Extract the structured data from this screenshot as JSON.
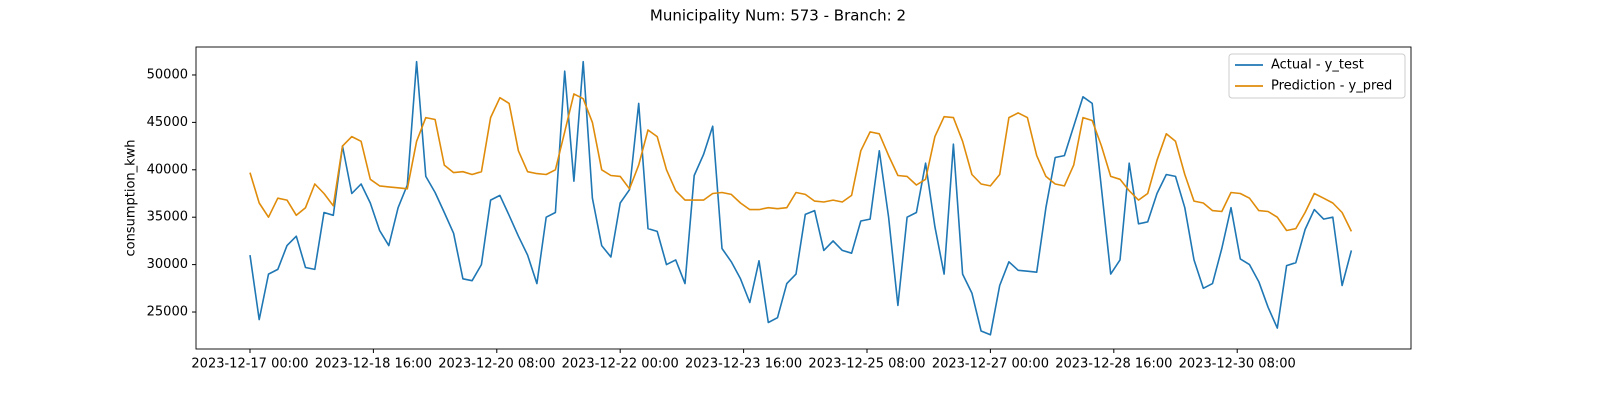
{
  "chart_data": {
    "type": "line",
    "title": "Municipality Num: 573 - Branch: 2",
    "y_label": "consumption_kwh",
    "x": [
      "2023-12-17 00:00",
      "2023-12-17 03:00",
      "2023-12-17 06:00",
      "2023-12-17 09:00",
      "2023-12-17 12:00",
      "2023-12-17 15:00",
      "2023-12-17 18:00",
      "2023-12-17 21:00",
      "2023-12-18 00:00",
      "2023-12-18 03:00",
      "2023-12-18 06:00",
      "2023-12-18 09:00",
      "2023-12-18 12:00",
      "2023-12-18 15:00",
      "2023-12-18 18:00",
      "2023-12-18 21:00",
      "2023-12-19 00:00",
      "2023-12-19 03:00",
      "2023-12-19 06:00",
      "2023-12-19 09:00",
      "2023-12-19 12:00",
      "2023-12-19 15:00",
      "2023-12-19 18:00",
      "2023-12-19 21:00",
      "2023-12-20 00:00",
      "2023-12-20 03:00",
      "2023-12-20 06:00",
      "2023-12-20 09:00",
      "2023-12-20 12:00",
      "2023-12-20 15:00",
      "2023-12-20 18:00",
      "2023-12-20 21:00",
      "2023-12-21 00:00",
      "2023-12-21 03:00",
      "2023-12-21 06:00",
      "2023-12-21 09:00",
      "2023-12-21 12:00",
      "2023-12-21 15:00",
      "2023-12-21 18:00",
      "2023-12-21 21:00",
      "2023-12-22 00:00",
      "2023-12-22 03:00",
      "2023-12-22 06:00",
      "2023-12-22 09:00",
      "2023-12-22 12:00",
      "2023-12-22 15:00",
      "2023-12-22 18:00",
      "2023-12-22 21:00",
      "2023-12-23 00:00",
      "2023-12-23 03:00",
      "2023-12-23 06:00",
      "2023-12-23 09:00",
      "2023-12-23 12:00",
      "2023-12-23 15:00",
      "2023-12-23 18:00",
      "2023-12-23 21:00",
      "2023-12-24 00:00",
      "2023-12-24 03:00",
      "2023-12-24 06:00",
      "2023-12-24 09:00",
      "2023-12-24 12:00",
      "2023-12-24 15:00",
      "2023-12-24 18:00",
      "2023-12-24 21:00",
      "2023-12-25 00:00",
      "2023-12-25 03:00",
      "2023-12-25 06:00",
      "2023-12-25 09:00",
      "2023-12-25 12:00",
      "2023-12-25 15:00",
      "2023-12-25 18:00",
      "2023-12-25 21:00",
      "2023-12-26 00:00",
      "2023-12-26 03:00",
      "2023-12-26 06:00",
      "2023-12-26 09:00",
      "2023-12-26 12:00",
      "2023-12-26 15:00",
      "2023-12-26 18:00",
      "2023-12-26 21:00",
      "2023-12-27 00:00",
      "2023-12-27 03:00",
      "2023-12-27 06:00",
      "2023-12-27 09:00",
      "2023-12-27 12:00",
      "2023-12-27 15:00",
      "2023-12-27 18:00",
      "2023-12-27 21:00",
      "2023-12-28 00:00",
      "2023-12-28 03:00",
      "2023-12-28 06:00",
      "2023-12-28 09:00",
      "2023-12-28 12:00",
      "2023-12-28 15:00",
      "2023-12-28 18:00",
      "2023-12-28 21:00",
      "2023-12-29 00:00",
      "2023-12-29 03:00",
      "2023-12-29 06:00",
      "2023-12-29 09:00",
      "2023-12-29 12:00",
      "2023-12-29 15:00",
      "2023-12-29 18:00",
      "2023-12-29 21:00",
      "2023-12-30 00:00",
      "2023-12-30 03:00",
      "2023-12-30 06:00",
      "2023-12-30 09:00",
      "2023-12-30 12:00",
      "2023-12-30 15:00",
      "2023-12-30 18:00",
      "2023-12-30 21:00",
      "2023-12-31 00:00",
      "2023-12-31 03:00",
      "2023-12-31 06:00",
      "2023-12-31 09:00",
      "2023-12-31 12:00",
      "2023-12-31 15:00",
      "2023-12-31 18:00",
      "2023-12-31 21:00"
    ],
    "series": [
      {
        "name": "Actual - y_test",
        "color": "#1f77b4",
        "values": [
          31000,
          24200,
          29000,
          29500,
          32000,
          33000,
          29700,
          29500,
          35500,
          35200,
          42500,
          37500,
          38500,
          36500,
          33600,
          32000,
          36000,
          38400,
          51400,
          39300,
          37600,
          35500,
          33300,
          28500,
          28300,
          30000,
          36800,
          37300,
          35200,
          33000,
          31000,
          28000,
          35000,
          35500,
          50400,
          38800,
          51400,
          37000,
          32000,
          30800,
          36500,
          37900,
          47000,
          33800,
          33500,
          30000,
          30500,
          28000,
          39400,
          41600,
          44600,
          31700,
          30300,
          28500,
          26000,
          30400,
          23900,
          24400,
          28000,
          29000,
          35300,
          35700,
          31500,
          32500,
          31500,
          31200,
          34600,
          34800,
          42000,
          35000,
          25700,
          35000,
          35500,
          40700,
          34000,
          29000,
          42700,
          29000,
          27000,
          23000,
          22600,
          27800,
          30300,
          29400,
          29300,
          29200,
          36000,
          41300,
          41500,
          44600,
          47700,
          47000,
          38000,
          29000,
          30500,
          40700,
          34300,
          34500,
          37500,
          39500,
          39300,
          36000,
          30500,
          27500,
          28000,
          31700,
          36000,
          30600,
          30000,
          28200,
          25500,
          23300,
          29900,
          30200,
          33700,
          35800,
          34800,
          35000,
          27800,
          31500
        ]
      },
      {
        "name": "Prediction - y_pred",
        "color": "#e08c0b",
        "values": [
          39700,
          36500,
          35000,
          37000,
          36800,
          35200,
          36000,
          38500,
          37500,
          36200,
          42500,
          43500,
          43000,
          39000,
          38300,
          38200,
          38100,
          38000,
          43000,
          45500,
          45300,
          40500,
          39700,
          39800,
          39500,
          39800,
          45500,
          47600,
          47000,
          42000,
          39800,
          39600,
          39500,
          40000,
          44000,
          48000,
          47500,
          45000,
          40000,
          39400,
          39300,
          38000,
          40500,
          44200,
          43500,
          40000,
          37800,
          36800,
          36800,
          36800,
          37500,
          37600,
          37400,
          36500,
          35800,
          35800,
          36000,
          35900,
          36000,
          37600,
          37400,
          36700,
          36600,
          36800,
          36600,
          37300,
          42000,
          44000,
          43800,
          41500,
          39400,
          39300,
          38400,
          39000,
          43500,
          45600,
          45500,
          43000,
          39500,
          38500,
          38300,
          39500,
          45500,
          46000,
          45500,
          41500,
          39300,
          38500,
          38300,
          40500,
          45500,
          45200,
          42500,
          39300,
          39000,
          37800,
          36800,
          37500,
          41000,
          43800,
          43000,
          39500,
          36700,
          36500,
          35700,
          35600,
          37600,
          37500,
          37000,
          35700,
          35600,
          35000,
          33600,
          33800,
          35500,
          37500,
          37000,
          36500,
          35500,
          33500
        ]
      }
    ],
    "xlim": [
      "2023-12-16 06:30",
      "2024-01-01 16:20"
    ],
    "xticks": [
      "2023-12-17 00:00",
      "2023-12-18 16:00",
      "2023-12-20 08:00",
      "2023-12-22 00:00",
      "2023-12-23 16:00",
      "2023-12-25 08:00",
      "2023-12-27 00:00",
      "2023-12-28 16:00",
      "2023-12-30 08:00"
    ],
    "ylim": [
      21100,
      52950
    ],
    "yticks": [
      25000,
      30000,
      35000,
      40000,
      45000,
      50000
    ],
    "legend": "upper right"
  }
}
